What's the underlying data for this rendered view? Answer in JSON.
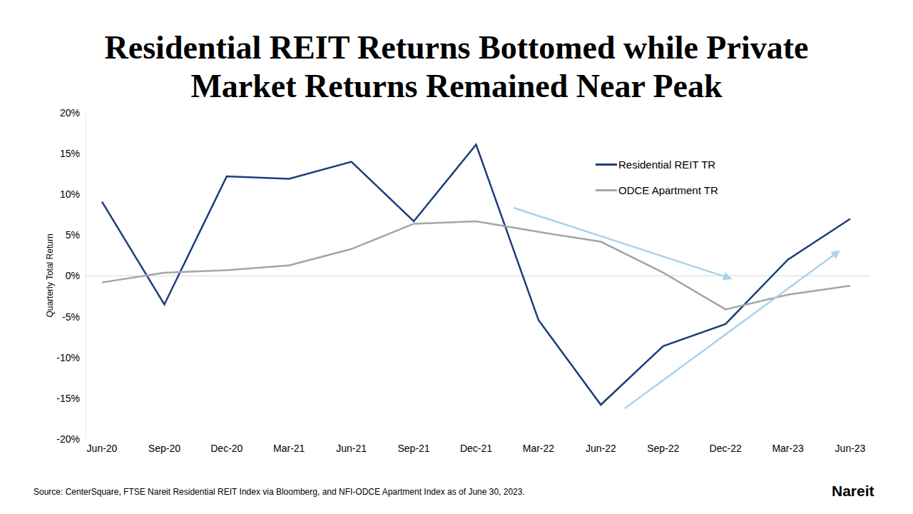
{
  "chart_data": {
    "type": "line",
    "title": "Residential REIT Returns Bottomed while Private Market Returns Remained Near Peak",
    "y_label": "Quarterly Total Return",
    "source": "Source: CenterSquare, FTSE Nareit Residential REIT Index via Bloomberg, and NFI-ODCE Apartment Index as of June 30, 2023.",
    "logo": "Nareit",
    "categories": [
      "Jun-20",
      "Sep-20",
      "Dec-20",
      "Mar-21",
      "Jun-21",
      "Sep-21",
      "Dec-21",
      "Mar-22",
      "Jun-22",
      "Sep-22",
      "Dec-22",
      "Mar-23",
      "Jun-23"
    ],
    "series": [
      {
        "name": "Residential REIT TR",
        "color": "#1b3e7a",
        "values": [
          9.1,
          -3.5,
          12.2,
          11.9,
          14.0,
          6.7,
          16.1,
          -5.4,
          -15.8,
          -8.6,
          -5.9,
          2.0,
          7.0
        ]
      },
      {
        "name": "ODCE Apartment TR",
        "color": "#a5a5a5",
        "values": [
          -0.8,
          0.4,
          0.7,
          1.3,
          3.3,
          6.4,
          6.7,
          5.4,
          4.2,
          0.4,
          -4.1,
          -2.3,
          -1.2
        ]
      }
    ],
    "ylim": [
      -20,
      20
    ],
    "yticks": [
      {
        "value": -20,
        "label": "-20%"
      },
      {
        "value": -15,
        "label": "-15%"
      },
      {
        "value": -10,
        "label": "-10%"
      },
      {
        "value": -5,
        "label": "-5%"
      },
      {
        "value": 0,
        "label": "0%"
      },
      {
        "value": 5,
        "label": "5%"
      },
      {
        "value": 10,
        "label": "10%"
      },
      {
        "value": 15,
        "label": "15%"
      },
      {
        "value": 20,
        "label": "20%"
      }
    ],
    "grid": false,
    "legend": "upper right"
  }
}
